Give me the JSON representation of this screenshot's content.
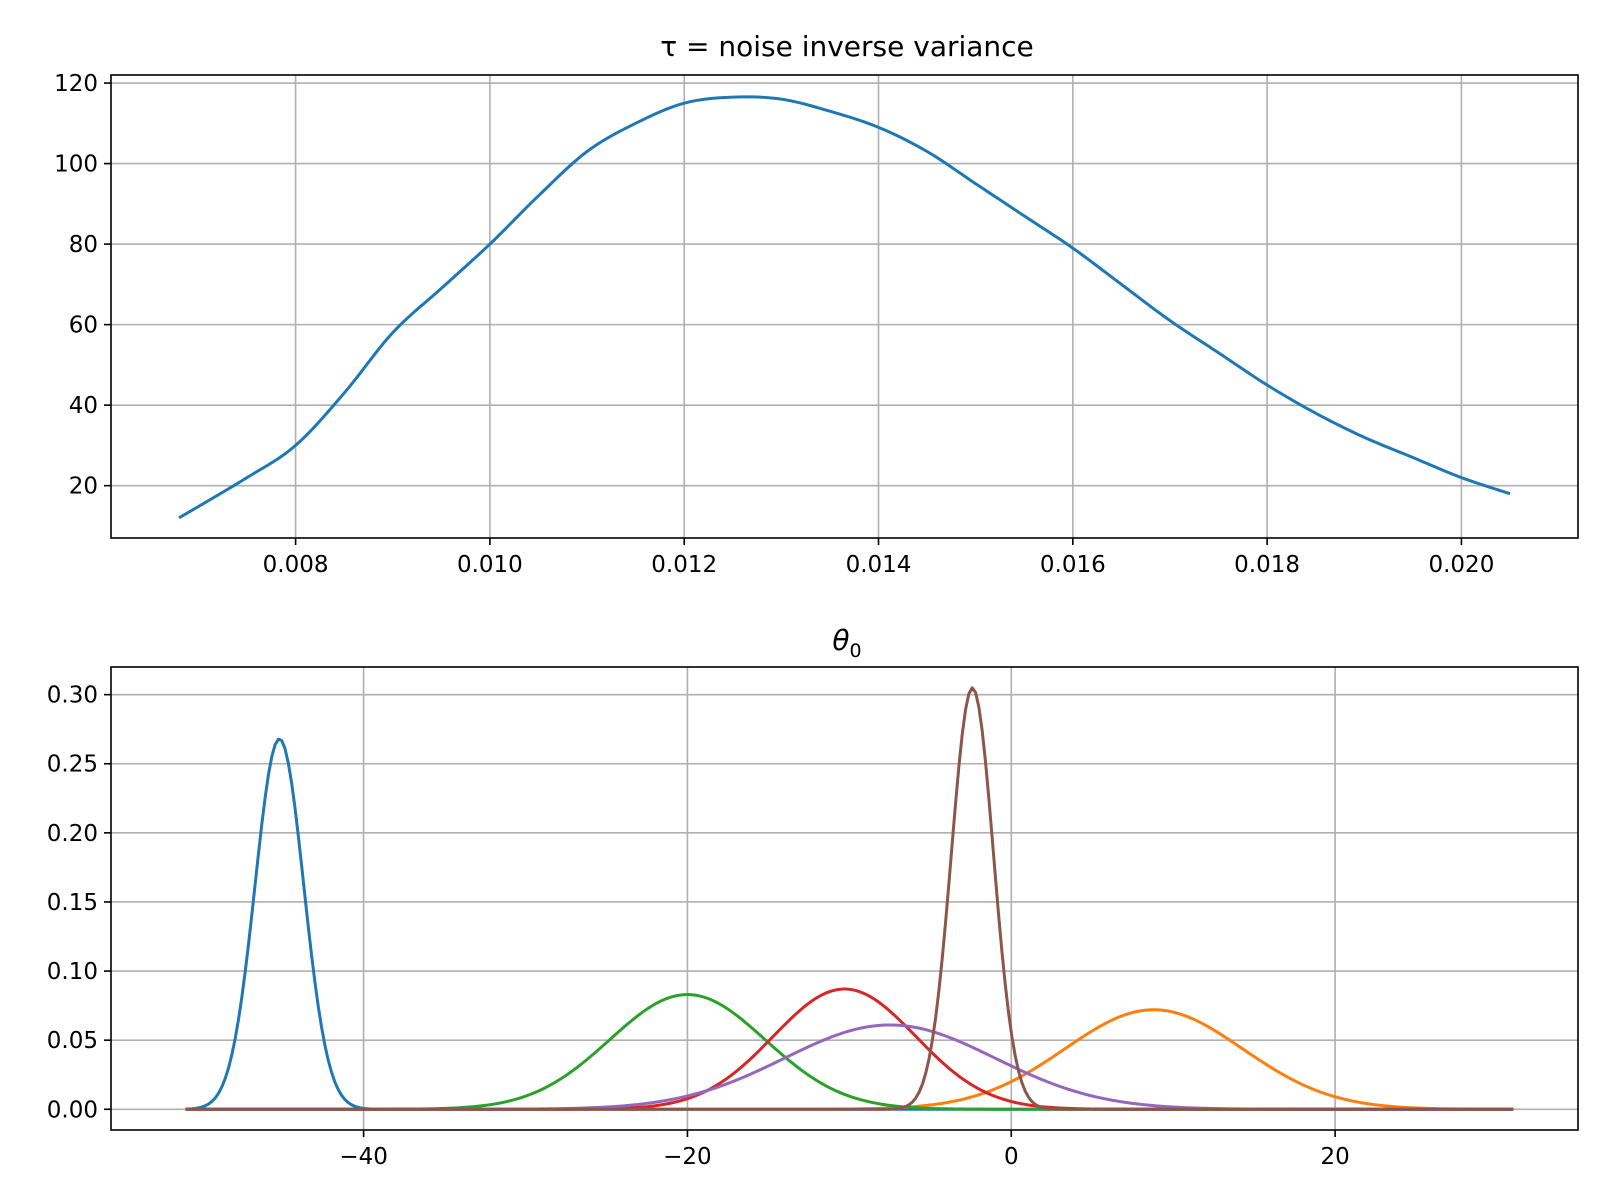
{
  "chart_data": [
    {
      "type": "line",
      "title": "τ = noise inverse variance",
      "xlabel": "",
      "ylabel": "",
      "xlim": [
        0.0061,
        0.0212
      ],
      "ylim": [
        7,
        122
      ],
      "grid": true,
      "xticks": [
        0.008,
        0.01,
        0.012,
        0.014,
        0.016,
        0.018,
        0.02
      ],
      "xtick_labels": [
        "0.008",
        "0.010",
        "0.012",
        "0.014",
        "0.016",
        "0.018",
        "0.020"
      ],
      "yticks": [
        20,
        40,
        60,
        80,
        100,
        120
      ],
      "ytick_labels": [
        "20",
        "40",
        "60",
        "80",
        "100",
        "120"
      ],
      "series": [
        {
          "color": "#1f77b4",
          "x": [
            0.0068,
            0.0075,
            0.008,
            0.0085,
            0.009,
            0.0095,
            0.01,
            0.0105,
            0.011,
            0.0115,
            0.012,
            0.0125,
            0.013,
            0.0135,
            0.014,
            0.0145,
            0.015,
            0.0155,
            0.016,
            0.0165,
            0.017,
            0.0175,
            0.018,
            0.0185,
            0.019,
            0.0195,
            0.02,
            0.0205
          ],
          "y": [
            12,
            22,
            30,
            43,
            58,
            69,
            80,
            92,
            103,
            110,
            115,
            116.5,
            116,
            113,
            109,
            103,
            95,
            87,
            79,
            70,
            61,
            53,
            45,
            38,
            32,
            27,
            22,
            18
          ]
        }
      ]
    },
    {
      "type": "line",
      "title_base": "θ",
      "title_sub": "0",
      "xlabel": "",
      "ylabel": "",
      "xlim": [
        -55.6,
        35
      ],
      "ylim": [
        -0.015,
        0.32
      ],
      "grid": true,
      "xticks": [
        -40,
        -20,
        0,
        20
      ],
      "xtick_labels": [
        "−40",
        "−20",
        "0",
        "20"
      ],
      "yticks": [
        0.0,
        0.05,
        0.1,
        0.15,
        0.2,
        0.25,
        0.3
      ],
      "ytick_labels": [
        "0.00",
        "0.05",
        "0.10",
        "0.15",
        "0.20",
        "0.25",
        "0.30"
      ],
      "x_range": [
        -51,
        31
      ],
      "series": [
        {
          "color": "#1f77b4",
          "mean": -45.2,
          "peak": 0.268,
          "sigma": 1.5
        },
        {
          "color": "#ff7f0e",
          "mean": 8.8,
          "peak": 0.072,
          "sigma": 5.5
        },
        {
          "color": "#2ca02c",
          "mean": -20.0,
          "peak": 0.083,
          "sigma": 4.8
        },
        {
          "color": "#d62728",
          "mean": -10.3,
          "peak": 0.087,
          "sigma": 4.4
        },
        {
          "color": "#9467bd",
          "mean": -7.5,
          "peak": 0.061,
          "sigma": 6.5
        },
        {
          "color": "#8c564b",
          "mean": -2.4,
          "peak": 0.305,
          "sigma": 1.3
        }
      ]
    }
  ]
}
